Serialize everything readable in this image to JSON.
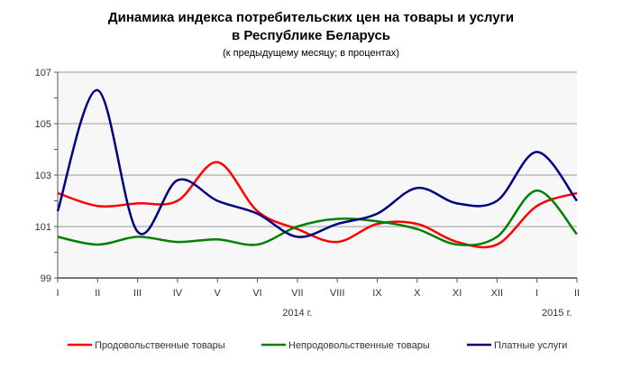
{
  "chart_data": {
    "type": "line",
    "title": "Динамика индекса потребительских цен на товары и услуги",
    "title2": "в Республике Беларусь",
    "subtitle": "(к предыдущему месяцу; в процентах)",
    "categories": [
      "I",
      "II",
      "III",
      "IV",
      "V",
      "VI",
      "VII",
      "VIII",
      "IX",
      "X",
      "XI",
      "XII",
      "I",
      "II"
    ],
    "year_labels": [
      "2014 г.",
      "2015 г."
    ],
    "ylim": [
      99,
      107
    ],
    "yticks": [
      99,
      101,
      103,
      105,
      107
    ],
    "grid": true,
    "legend_position": "bottom",
    "series": [
      {
        "name": "Продовольственные товары",
        "color": "#ff0000",
        "values": [
          102.3,
          101.8,
          101.9,
          102.0,
          103.5,
          101.6,
          100.9,
          100.4,
          101.1,
          101.1,
          100.4,
          100.3,
          101.8,
          102.3
        ]
      },
      {
        "name": "Непродовольственные товары",
        "color": "#008000",
        "values": [
          100.6,
          100.3,
          100.6,
          100.4,
          100.5,
          100.3,
          101.0,
          101.3,
          101.2,
          100.9,
          100.3,
          100.6,
          102.4,
          100.7
        ]
      },
      {
        "name": "Платные услуги",
        "color": "#000080",
        "values": [
          101.6,
          106.3,
          100.8,
          102.8,
          102.0,
          101.5,
          100.6,
          101.1,
          101.5,
          102.5,
          101.9,
          102.0,
          103.9,
          102.0
        ]
      }
    ]
  }
}
